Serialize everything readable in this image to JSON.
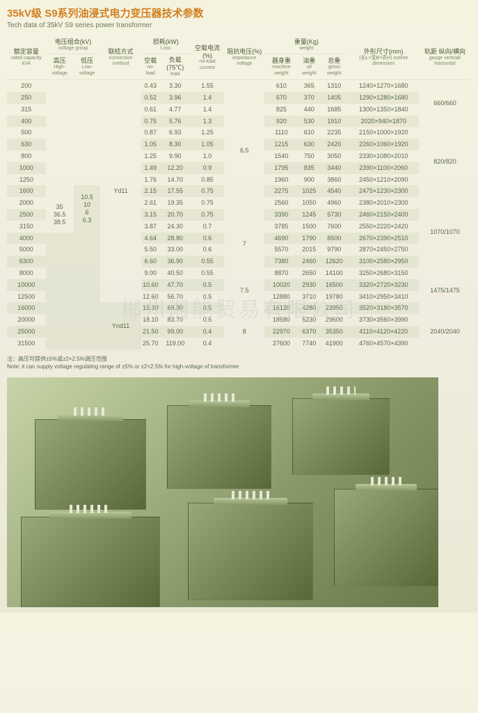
{
  "title_cn": "35kV级 S9系列油浸式电力变压器技术参数",
  "title_en": "Tech data of 35kV S9 series power transformer",
  "headers": {
    "capacity": {
      "cn": "额定容量",
      "en": "rated capacity kVA"
    },
    "voltage_group": {
      "cn": "电压组合(kV)",
      "en": "voltage group"
    },
    "hv": {
      "cn": "高压",
      "en": "High-voltage"
    },
    "lv": {
      "cn": "低压",
      "en": "Low-voltage"
    },
    "conn": {
      "cn": "联结方式",
      "en": "connection method"
    },
    "loss": {
      "cn": "损耗(kW)",
      "en": "Loss"
    },
    "noload": {
      "cn": "空载",
      "en": "no-load"
    },
    "load": {
      "cn": "负载(75℃)",
      "en": "load"
    },
    "nlcurrent": {
      "cn": "空载电流(%)",
      "en": "no-load current"
    },
    "impedance": {
      "cn": "阻抗电压(%)",
      "en": "impedance voltage"
    },
    "weight": {
      "cn": "重量(Kg)",
      "en": "weight"
    },
    "mw": {
      "cn": "器身重",
      "en": "machine weight"
    },
    "ow": {
      "cn": "油重",
      "en": "oil weight"
    },
    "gw": {
      "cn": "总重",
      "en": "gross weight"
    },
    "dim": {
      "cn": "外形尺寸(mm)",
      "en": "(长L×宽B×高H) outline dimension"
    },
    "gauge": {
      "cn": "轨距 纵向/横向",
      "en": "gauge vertical/ horizontal"
    }
  },
  "hv_values": "35\n36.5\n38.5",
  "lv_values": "10.5\n10\n6\n6.3",
  "conn1": "Yd11",
  "conn2": "Ynd11",
  "impedance_vals": [
    "6.5",
    "7",
    "7.5",
    "8"
  ],
  "gauge_vals": [
    "660/660",
    "820/820",
    "1070/1070",
    "1475/1475",
    "2040/2040"
  ],
  "rows": [
    {
      "cap": "200",
      "nl": "0.43",
      "ld": "3.30",
      "nlc": "1.55",
      "mw": "610",
      "ow": "365",
      "gw": "1310",
      "dim": "1240×1270×1680"
    },
    {
      "cap": "250",
      "nl": "0.52",
      "ld": "3.96",
      "nlc": "1.4",
      "mw": "670",
      "ow": "370",
      "gw": "1405",
      "dim": "1290×1280×1680"
    },
    {
      "cap": "315",
      "nl": "0.61",
      "ld": "4.77",
      "nlc": "1.4",
      "mw": "825",
      "ow": "440",
      "gw": "1685",
      "dim": "1300×1350×1840"
    },
    {
      "cap": "400",
      "nl": "0.75",
      "ld": "5.76",
      "nlc": "1.3",
      "mw": "920",
      "ow": "530",
      "gw": "1910",
      "dim": "2020×940×1870"
    },
    {
      "cap": "500",
      "nl": "0.87",
      "ld": "6.93",
      "nlc": "1.25",
      "mw": "1110",
      "ow": "610",
      "gw": "2235",
      "dim": "2150×1000×1920"
    },
    {
      "cap": "630",
      "nl": "1.05",
      "ld": "8.30",
      "nlc": "1.05",
      "mw": "1215",
      "ow": "630",
      "gw": "2420",
      "dim": "2260×1060×1920"
    },
    {
      "cap": "800",
      "nl": "1.25",
      "ld": "9.90",
      "nlc": "1.0",
      "mw": "1540",
      "ow": "750",
      "gw": "3050",
      "dim": "2330×1080×2010"
    },
    {
      "cap": "1000",
      "nl": "1.49",
      "ld": "12.20",
      "nlc": "0.9",
      "mw": "1795",
      "ow": "835",
      "gw": "3440",
      "dim": "2390×1100×2060"
    },
    {
      "cap": "1250",
      "nl": "1.76",
      "ld": "14.70",
      "nlc": "0.85",
      "mw": "1960",
      "ow": "900",
      "gw": "3860",
      "dim": "2450×1210×2090"
    },
    {
      "cap": "1600",
      "nl": "2.15",
      "ld": "17.55",
      "nlc": "0.75",
      "mw": "2275",
      "ow": "1025",
      "gw": "4540",
      "dim": "2475×1230×2300"
    },
    {
      "cap": "2000",
      "nl": "2.61",
      "ld": "19.35",
      "nlc": "0.75",
      "mw": "2560",
      "ow": "1050",
      "gw": "4960",
      "dim": "2380×2010×2300"
    },
    {
      "cap": "2500",
      "nl": "3.15",
      "ld": "20.70",
      "nlc": "0.75",
      "mw": "3390",
      "ow": "1245",
      "gw": "5730",
      "dim": "2460×2150×2400"
    },
    {
      "cap": "3150",
      "nl": "3.87",
      "ld": "24.30",
      "nlc": "0.7",
      "mw": "3785",
      "ow": "1500",
      "gw": "7600",
      "dim": "2550×2220×2420"
    },
    {
      "cap": "4000",
      "nl": "4.64",
      "ld": "28.80",
      "nlc": "0.6",
      "mw": "4690",
      "ow": "1790",
      "gw": "8500",
      "dim": "2670×2390×2510"
    },
    {
      "cap": "5000",
      "nl": "5.50",
      "ld": "33.00",
      "nlc": "0.6",
      "mw": "5570",
      "ow": "2015",
      "gw": "9790",
      "dim": "2870×2450×2750"
    },
    {
      "cap": "6300",
      "nl": "6.60",
      "ld": "36.90",
      "nlc": "0.55",
      "mw": "7380",
      "ow": "2460",
      "gw": "12620",
      "dim": "3100×2580×2950"
    },
    {
      "cap": "8000",
      "nl": "9.00",
      "ld": "40.50",
      "nlc": "0.55",
      "mw": "8870",
      "ow": "2650",
      "gw": "14100",
      "dim": "3250×2680×3150"
    },
    {
      "cap": "10000",
      "nl": "10.60",
      "ld": "47.70",
      "nlc": "0.5",
      "mw": "10020",
      "ow": "2930",
      "gw": "16500",
      "dim": "3320×2720×3230"
    },
    {
      "cap": "12500",
      "nl": "12.60",
      "ld": "56.70",
      "nlc": "0.5",
      "mw": "12880",
      "ow": "3710",
      "gw": "19780",
      "dim": "3410×2950×3410"
    },
    {
      "cap": "16000",
      "nl": "15.30",
      "ld": "69.30",
      "nlc": "0.5",
      "mw": "16120",
      "ow": "4280",
      "gw": "23950",
      "dim": "3520×3180×3570"
    },
    {
      "cap": "20000",
      "nl": "18.10",
      "ld": "83.70",
      "nlc": "0.5",
      "mw": "18580",
      "ow": "5230",
      "gw": "29600",
      "dim": "3730×3560×3990"
    },
    {
      "cap": "25000",
      "nl": "21.50",
      "ld": "99.00",
      "nlc": "0.4",
      "mw": "22970",
      "ow": "6370",
      "gw": "35350",
      "dim": "4110×4120×4220"
    },
    {
      "cap": "31500",
      "nl": "25.70",
      "ld": "119.00",
      "nlc": "0.4",
      "mw": "27600",
      "ow": "7740",
      "gw": "41900",
      "dim": "4760×4570×4390"
    }
  ],
  "note_cn": "注：高压可提供±5%或±2×2.5%调压范围",
  "note_en": "Note: it can supply voltage regulating range of ±5% or ±2×2.5% for high-voltage of transformer",
  "watermark": "郴州湘能贸易有限公司",
  "colors": {
    "title": "#d08020",
    "text": "#4a5a3a",
    "bg_start": "#f5f3e0",
    "bg_end": "#ebe8d5",
    "stripe": "rgba(180,190,150,0.18)"
  }
}
